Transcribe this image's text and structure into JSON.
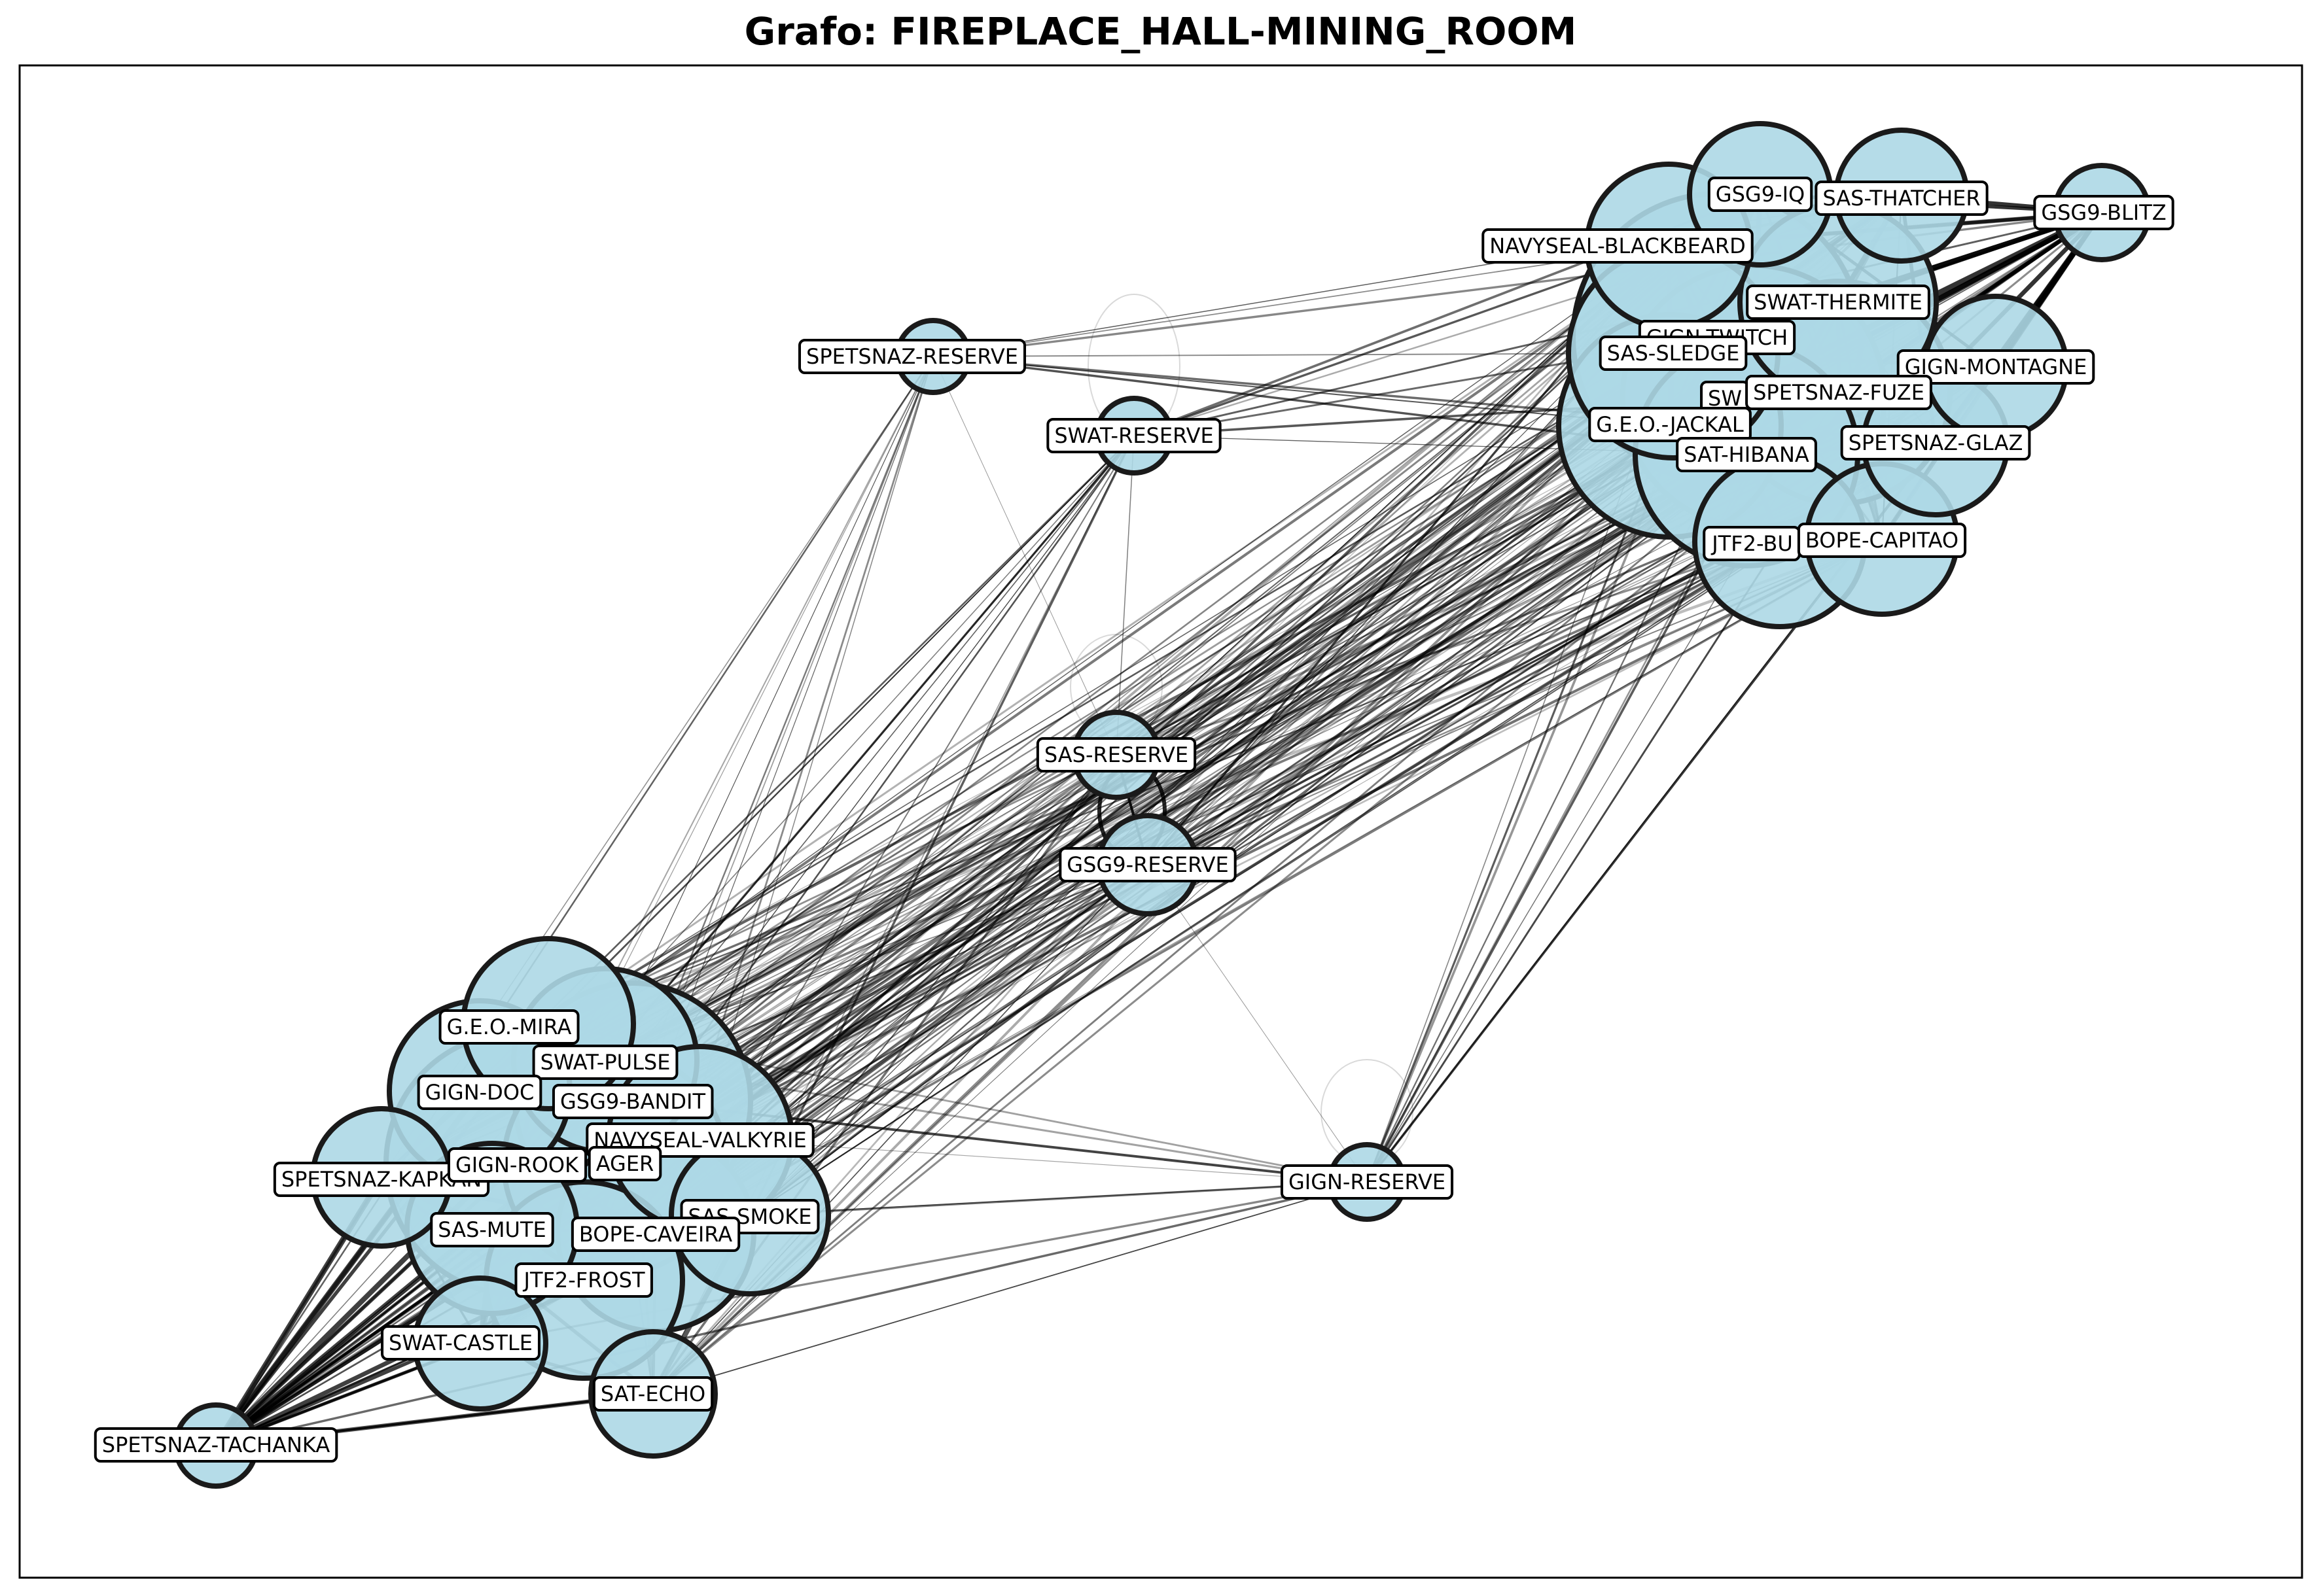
{
  "title": "Grafo: FIREPLACE_HALL-MINING_ROOM",
  "colors": {
    "node_fill": "#add8e6",
    "node_edge": "#1a1a1a",
    "edge": "#000000",
    "frame": "#000000"
  },
  "nodes": [
    {
      "id": "SPETSNAZ-RESERVE",
      "label": "SPETSNAZ-RESERVE",
      "group": "reserve"
    },
    {
      "id": "SWAT-RESERVE",
      "label": "SWAT-RESERVE",
      "group": "reserve"
    },
    {
      "id": "SAS-RESERVE",
      "label": "SAS-RESERVE",
      "group": "reserve"
    },
    {
      "id": "GSG9-RESERVE",
      "label": "GSG9-RESERVE",
      "group": "reserve"
    },
    {
      "id": "GIGN-RESERVE",
      "label": "GIGN-RESERVE",
      "group": "reserve"
    },
    {
      "id": "GSG9-IQ",
      "label": "GSG9-IQ",
      "group": "attack"
    },
    {
      "id": "SAS-THATCHER",
      "label": "SAS-THATCHER",
      "group": "attack"
    },
    {
      "id": "GSG9-BLITZ",
      "label": "GSG9-BLITZ",
      "group": "attack"
    },
    {
      "id": "NAVYSEAL-BLACKBEARD",
      "label": "NAVYSEAL-BLACKBEARD",
      "group": "attack"
    },
    {
      "id": "SWAT-THERMITE",
      "label": "SWAT-THERMITE",
      "group": "attack"
    },
    {
      "id": "GIGN-TWITCH",
      "label": "GIGN-TWITCH",
      "group": "attack"
    },
    {
      "id": "SAS-SLEDGE",
      "label": "SAS-SLEDGE",
      "group": "attack"
    },
    {
      "id": "GIGN-MONTAGNE",
      "label": "GIGN-MONTAGNE",
      "group": "attack"
    },
    {
      "id": "SWAT-ASH",
      "label": "SW",
      "group": "attack"
    },
    {
      "id": "SPETSNAZ-FUZE",
      "label": "SPETSNAZ-FUZE",
      "group": "attack"
    },
    {
      "id": "G.E.O.-JACKAL",
      "label": "G.E.O.-JACKAL",
      "group": "attack"
    },
    {
      "id": "SPETSNAZ-GLAZ",
      "label": "SPETSNAZ-GLAZ",
      "group": "attack"
    },
    {
      "id": "SAT-HIBANA",
      "label": "SAT-HIBANA",
      "group": "attack"
    },
    {
      "id": "JTF2-BUCK",
      "label": "JTF2-BU",
      "group": "attack"
    },
    {
      "id": "BOPE-CAPITAO",
      "label": "BOPE-CAPITAO",
      "group": "attack"
    },
    {
      "id": "G.E.O.-MIRA",
      "label": "G.E.O.-MIRA",
      "group": "defense"
    },
    {
      "id": "SWAT-PULSE",
      "label": "SWAT-PULSE",
      "group": "defense"
    },
    {
      "id": "GIGN-DOC",
      "label": "GIGN-DOC",
      "group": "defense"
    },
    {
      "id": "GSG9-BANDIT",
      "label": "GSG9-BANDIT",
      "group": "defense"
    },
    {
      "id": "NAVYSEAL-VALKYRIE",
      "label": "NAVYSEAL-VALKYRIE",
      "group": "defense"
    },
    {
      "id": "GSG9-JAGER",
      "label": "AGER",
      "group": "defense"
    },
    {
      "id": "SPETSNAZ-KAPKAN",
      "label": "SPETSNAZ-KAPKAN",
      "group": "defense"
    },
    {
      "id": "GIGN-ROOK",
      "label": "GIGN-ROOK",
      "group": "defense"
    },
    {
      "id": "SAS-SMOKE",
      "label": "SAS-SMOKE",
      "group": "defense"
    },
    {
      "id": "SAS-MUTE",
      "label": "SAS-MUTE",
      "group": "defense"
    },
    {
      "id": "BOPE-CAVEIRA",
      "label": "BOPE-CAVEIRA",
      "group": "defense"
    },
    {
      "id": "JTF2-FROST",
      "label": "JTF2-FROST",
      "group": "defense"
    },
    {
      "id": "SWAT-CASTLE",
      "label": "SWAT-CASTLE",
      "group": "defense"
    },
    {
      "id": "SAT-ECHO",
      "label": "SAT-ECHO",
      "group": "defense"
    },
    {
      "id": "SPETSNAZ-TACHANKA",
      "label": "SPETSNAZ-TACHANKA",
      "group": "defense"
    }
  ]
}
